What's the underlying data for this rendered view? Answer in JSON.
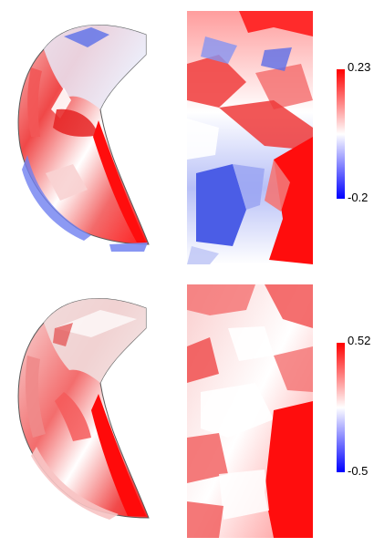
{
  "panels": [
    {
      "id": "top",
      "colorbar": {
        "max_label": "0.23",
        "min_label": "-0.2",
        "max_color": "#ff0000",
        "mid_color": "#ffffff",
        "min_color": "#0000ff"
      }
    },
    {
      "id": "bottom",
      "colorbar": {
        "max_label": "0.52",
        "min_label": "-0.5",
        "max_color": "#ff0000",
        "mid_color": "#ffffff",
        "min_color": "#0000ff"
      }
    }
  ]
}
